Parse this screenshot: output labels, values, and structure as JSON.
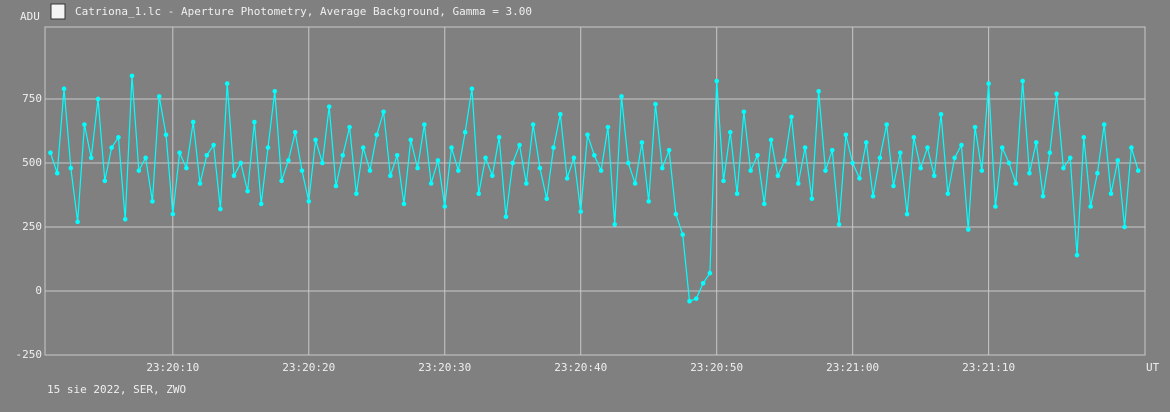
{
  "chart_data": {
    "type": "line",
    "title": "Catriona_1.lc - Aperture Photometry, Average Background, Gamma = 3.00",
    "ylabel": "ADU",
    "xlabel": "UT",
    "footer": "15 sie 2022, SER, ZWO",
    "xlim": [
      84000.6,
      84081.5
    ],
    "ylim": [
      -250,
      1031
    ],
    "xticks": [
      {
        "value": 84010,
        "label": "23:20:10"
      },
      {
        "value": 84020,
        "label": "23:20:20"
      },
      {
        "value": 84030,
        "label": "23:20:30"
      },
      {
        "value": 84040,
        "label": "23:20:40"
      },
      {
        "value": 84050,
        "label": "23:20:50"
      },
      {
        "value": 84060,
        "label": "23:21:00"
      },
      {
        "value": 84070,
        "label": "23:21:10"
      }
    ],
    "yticks": [
      -250,
      0,
      250,
      500,
      750
    ],
    "grid": true,
    "x": [
      84001,
      84001.5,
      84002,
      84002.5,
      84003,
      84003.5,
      84004,
      84004.5,
      84005,
      84005.5,
      84006,
      84006.5,
      84007,
      84007.5,
      84008,
      84008.5,
      84009,
      84009.5,
      84010,
      84010.5,
      84011,
      84011.5,
      84012,
      84012.5,
      84013,
      84013.5,
      84014,
      84014.5,
      84015,
      84015.5,
      84016,
      84016.5,
      84017,
      84017.5,
      84018,
      84018.5,
      84019,
      84019.5,
      84020,
      84020.5,
      84021,
      84021.5,
      84022,
      84022.5,
      84023,
      84023.5,
      84024,
      84024.5,
      84025,
      84025.5,
      84026,
      84026.5,
      84027,
      84027.5,
      84028,
      84028.5,
      84029,
      84029.5,
      84030,
      84030.5,
      84031,
      84031.5,
      84032,
      84032.5,
      84033,
      84033.5,
      84034,
      84034.5,
      84035,
      84035.5,
      84036,
      84036.5,
      84037,
      84037.5,
      84038,
      84038.5,
      84039,
      84039.5,
      84040,
      84040.5,
      84041,
      84041.5,
      84042,
      84042.5,
      84043,
      84043.5,
      84044,
      84044.5,
      84045,
      84045.5,
      84046,
      84046.5,
      84047,
      84047.5,
      84048,
      84048.5,
      84049,
      84049.5,
      84050,
      84050.5,
      84051,
      84051.5,
      84052,
      84052.5,
      84053,
      84053.5,
      84054,
      84054.5,
      84055,
      84055.5,
      84056,
      84056.5,
      84057,
      84057.5,
      84058,
      84058.5,
      84059,
      84059.5,
      84060,
      84060.5,
      84061,
      84061.5,
      84062,
      84062.5,
      84063,
      84063.5,
      84064,
      84064.5,
      84065,
      84065.5,
      84066,
      84066.5,
      84067,
      84067.5,
      84068,
      84068.5,
      84069,
      84069.5,
      84070,
      84070.5,
      84071,
      84071.5,
      84072,
      84072.5,
      84073,
      84073.5,
      84074,
      84074.5,
      84075,
      84075.5,
      84076,
      84076.5,
      84077,
      84077.5,
      84078,
      84078.5,
      84079,
      84079.5,
      84080,
      84080.5,
      84081
    ],
    "series": [
      {
        "color": "#00ffff",
        "values": [
          540,
          460,
          790,
          480,
          270,
          650,
          520,
          750,
          430,
          560,
          600,
          280,
          840,
          470,
          520,
          350,
          760,
          610,
          300,
          540,
          480,
          660,
          420,
          530,
          570,
          320,
          810,
          450,
          500,
          390,
          660,
          340,
          560,
          780,
          430,
          510,
          620,
          470,
          350,
          590,
          500,
          720,
          410,
          530,
          640,
          380,
          560,
          470,
          610,
          700,
          450,
          530,
          340,
          590,
          480,
          650,
          420,
          510,
          330,
          560,
          470,
          620,
          790,
          380,
          520,
          450,
          600,
          290,
          500,
          570,
          420,
          650,
          480,
          360,
          560,
          690,
          440,
          520,
          310,
          610,
          530,
          470,
          640,
          260,
          760,
          500,
          420,
          580,
          350,
          730,
          480,
          550,
          300,
          220,
          -40,
          -30,
          30,
          70,
          820,
          430,
          620,
          380,
          700,
          470,
          530,
          340,
          590,
          450,
          510,
          680,
          420,
          560,
          360,
          780,
          470,
          550,
          260,
          610,
          500,
          440,
          580,
          370,
          520,
          650,
          410,
          540,
          300,
          600,
          480,
          560,
          450,
          690,
          380,
          520,
          570,
          240,
          640,
          470,
          810,
          330,
          560,
          500,
          420,
          820,
          460,
          580,
          370,
          540,
          770,
          480,
          520,
          140,
          600,
          330,
          460,
          650,
          380,
          510,
          250,
          560,
          470
        ]
      }
    ]
  }
}
